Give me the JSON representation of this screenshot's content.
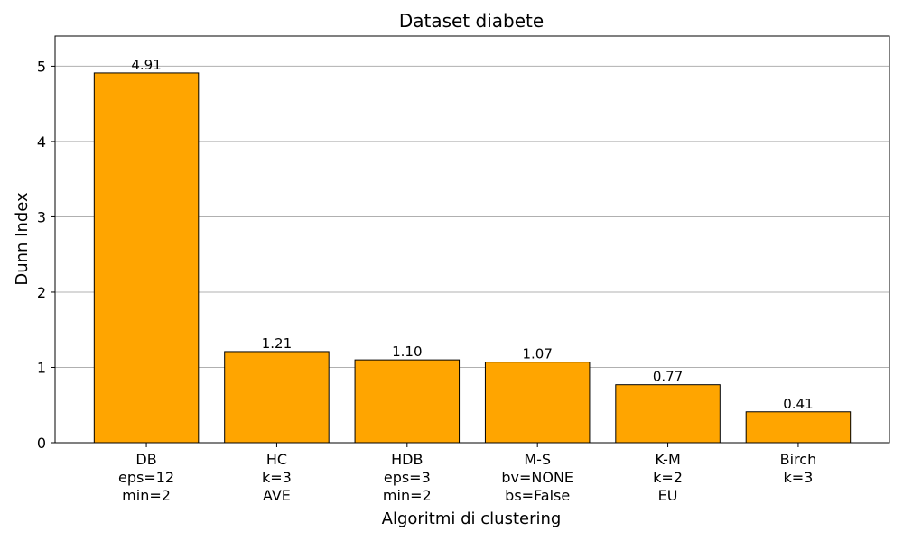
{
  "chart_data": {
    "type": "bar",
    "title": "Dataset diabete",
    "xlabel": "Algoritmi di clustering",
    "ylabel": "Dunn Index",
    "categories": [
      [
        "DB",
        "eps=12",
        "min=2"
      ],
      [
        "HC",
        "k=3",
        "AVE"
      ],
      [
        "HDB",
        "eps=3",
        "min=2"
      ],
      [
        "M-S",
        "bv=NONE",
        "bs=False"
      ],
      [
        "K-M",
        "k=2",
        "EU"
      ],
      [
        "Birch",
        "k=3"
      ]
    ],
    "values": [
      4.91,
      1.21,
      1.1,
      1.07,
      0.77,
      0.41
    ],
    "value_labels": [
      "4.91",
      "1.21",
      "1.10",
      "1.07",
      "0.77",
      "0.41"
    ],
    "ylim": [
      0,
      5.4
    ],
    "yticks": [
      0,
      1,
      2,
      3,
      4,
      5
    ],
    "grid": "y",
    "bar_color": "#FFA500",
    "bar_edge_color": "#000000"
  }
}
